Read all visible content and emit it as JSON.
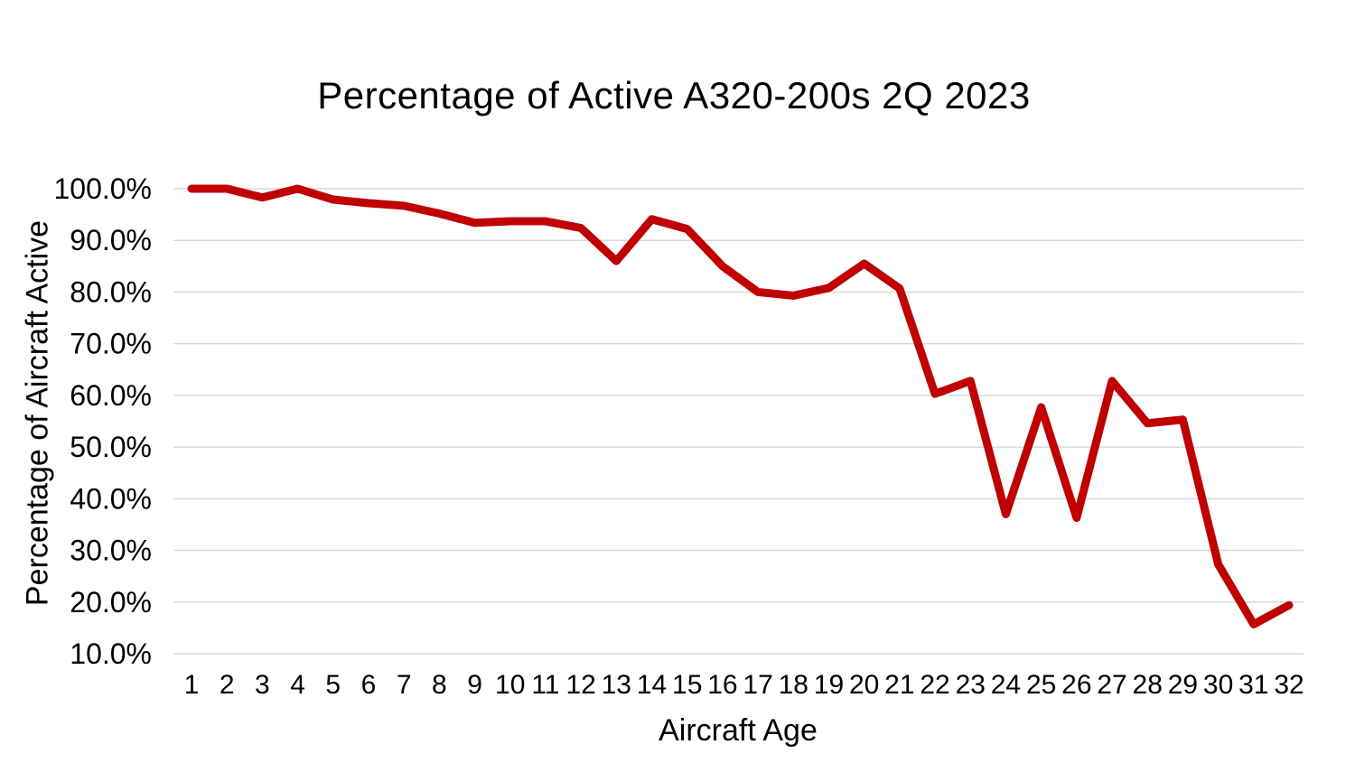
{
  "chart_data": {
    "type": "line",
    "title": "Percentage of Active A320-200s 2Q 2023",
    "xlabel": "Aircraft Age",
    "ylabel": "Percentage of Aircraft Active",
    "categories": [
      1,
      2,
      3,
      4,
      5,
      6,
      7,
      8,
      9,
      10,
      11,
      12,
      13,
      14,
      15,
      16,
      17,
      18,
      19,
      20,
      21,
      22,
      23,
      24,
      25,
      26,
      27,
      28,
      29,
      30,
      31,
      32
    ],
    "values": [
      100.0,
      100.0,
      98.3,
      100.0,
      97.9,
      97.2,
      96.7,
      95.2,
      93.4,
      93.7,
      93.7,
      92.4,
      86.0,
      94.1,
      92.2,
      85.0,
      80.0,
      79.3,
      80.8,
      85.5,
      80.7,
      60.3,
      62.8,
      37.0,
      57.7,
      36.3,
      62.8,
      54.6,
      55.3,
      27.3,
      15.7,
      19.4
    ],
    "ylim": [
      10,
      100
    ],
    "ytick_step": 10,
    "ytick_labels": [
      "100.0%",
      "90.0%",
      "80.0%",
      "70.0%",
      "60.0%",
      "50.0%",
      "40.0%",
      "30.0%",
      "20.0%",
      "10.0%"
    ],
    "grid": "horizontal",
    "legend": "none",
    "line_color": "#c00000",
    "gridline_color": "#d9d9d9",
    "text_color": "#000000",
    "line_width": 9
  }
}
